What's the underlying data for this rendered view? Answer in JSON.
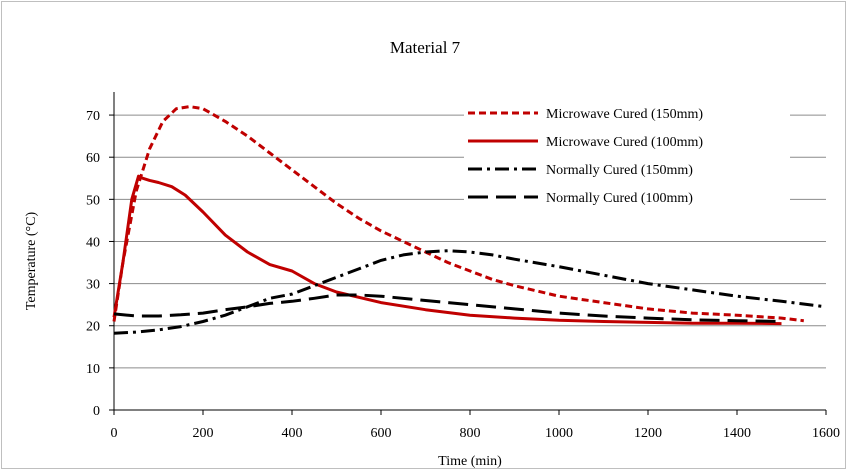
{
  "chart_data": {
    "type": "line",
    "title": "Material 7",
    "xlabel": "Time (min)",
    "ylabel": "Temperature (°C)",
    "xlim": [
      0,
      1600
    ],
    "ylim": [
      0,
      75
    ],
    "x_ticks": [
      0,
      200,
      400,
      600,
      800,
      1000,
      1200,
      1400,
      1600
    ],
    "y_ticks": [
      0,
      10,
      20,
      30,
      40,
      50,
      60,
      70
    ],
    "x_tick_labels": [
      "0",
      "200",
      "400",
      "600",
      "800",
      "1000",
      "1200",
      "1400",
      "1600"
    ],
    "y_tick_labels": [
      "0",
      "10",
      "20",
      "30",
      "40",
      "50",
      "60",
      "70"
    ],
    "grid": "horizontal",
    "legend": "top-right",
    "series": [
      {
        "name": "Microwave Cured (150mm)",
        "color": "#c00000",
        "dash": "short-dash",
        "x": [
          0,
          20,
          50,
          80,
          110,
          140,
          170,
          200,
          250,
          300,
          350,
          400,
          450,
          500,
          550,
          600,
          650,
          700,
          750,
          800,
          850,
          900,
          1000,
          1100,
          1200,
          1300,
          1400,
          1500,
          1550
        ],
        "y": [
          21,
          35,
          52,
          62,
          68.5,
          71.5,
          72,
          71.5,
          68.5,
          65,
          61,
          57,
          53,
          49,
          45.5,
          42.5,
          40,
          37.5,
          35,
          33,
          31,
          29.5,
          27,
          25.5,
          24,
          23,
          22.5,
          21.8,
          21.2
        ]
      },
      {
        "name": "Microwave Cured (100mm)",
        "color": "#c00000",
        "dash": "solid",
        "x": [
          0,
          20,
          40,
          55,
          65,
          80,
          100,
          130,
          160,
          200,
          250,
          300,
          350,
          400,
          450,
          500,
          600,
          700,
          800,
          900,
          1000,
          1100,
          1200,
          1300,
          1400,
          1500
        ],
        "y": [
          22,
          35,
          50,
          55.5,
          55,
          54.5,
          54,
          53,
          51,
          47,
          41.5,
          37.5,
          34.5,
          33,
          30,
          28,
          25.5,
          23.8,
          22.5,
          21.8,
          21.3,
          21,
          20.8,
          20.6,
          20.6,
          20.5
        ]
      },
      {
        "name": "Normally Cured (150mm)",
        "color": "#000000",
        "dash": "dash-dot",
        "x": [
          0,
          50,
          100,
          150,
          200,
          250,
          300,
          350,
          400,
          450,
          500,
          550,
          600,
          650,
          700,
          750,
          800,
          850,
          900,
          1000,
          1100,
          1200,
          1300,
          1400,
          1500,
          1600
        ],
        "y": [
          18.2,
          18.5,
          19,
          19.8,
          21,
          22.5,
          24.5,
          26.5,
          27.5,
          29.5,
          31.5,
          33.5,
          35.5,
          36.8,
          37.5,
          37.8,
          37.5,
          36.8,
          35.8,
          34,
          32,
          30,
          28.5,
          27,
          25.8,
          24.5
        ]
      },
      {
        "name": "Normally Cured (100mm)",
        "color": "#000000",
        "dash": "long-dash",
        "x": [
          0,
          50,
          100,
          150,
          200,
          250,
          300,
          350,
          400,
          450,
          500,
          550,
          600,
          700,
          800,
          900,
          1000,
          1100,
          1200,
          1300,
          1400,
          1500
        ],
        "y": [
          22.8,
          22.3,
          22.3,
          22.6,
          23,
          23.8,
          24.5,
          25.3,
          25.8,
          26.5,
          27.3,
          27.3,
          27,
          26,
          25,
          24,
          23,
          22.3,
          21.8,
          21.4,
          21.2,
          21
        ]
      }
    ]
  }
}
